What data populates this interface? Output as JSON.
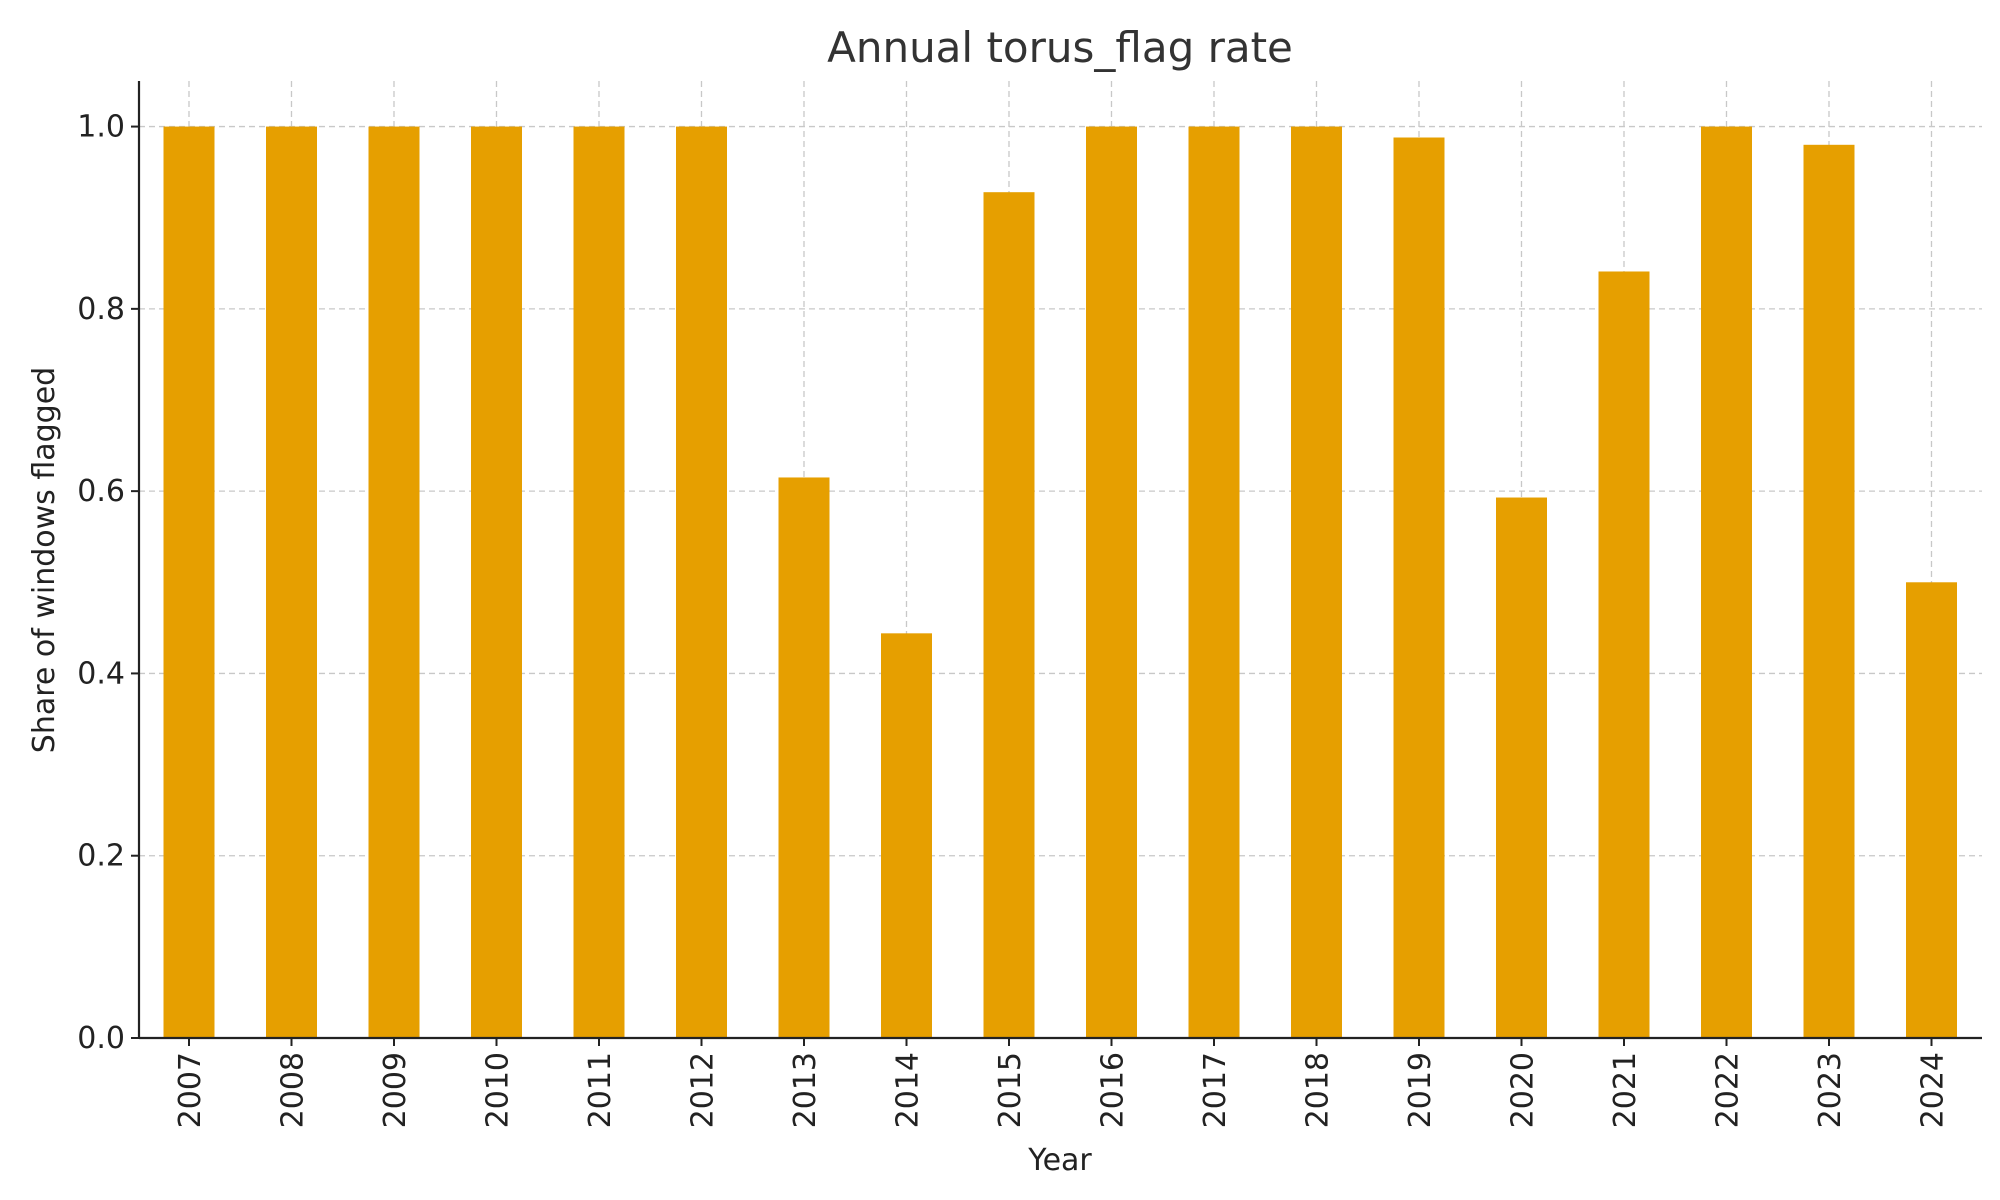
{
  "chart_data": {
    "type": "bar",
    "title": "Annual torus_flag rate",
    "xlabel": "Year",
    "ylabel": "Share of windows flagged",
    "categories": [
      "2007",
      "2008",
      "2009",
      "2010",
      "2011",
      "2012",
      "2013",
      "2014",
      "2015",
      "2016",
      "2017",
      "2018",
      "2019",
      "2020",
      "2021",
      "2022",
      "2023",
      "2024"
    ],
    "values": [
      1.0,
      1.0,
      1.0,
      1.0,
      1.0,
      1.0,
      0.615,
      0.444,
      0.928,
      1.0,
      1.0,
      1.0,
      0.988,
      0.593,
      0.841,
      1.0,
      0.98,
      0.5
    ],
    "ylim": [
      0,
      1.05
    ],
    "yticks": [
      "0.0",
      "0.2",
      "0.4",
      "0.6",
      "0.8",
      "1.0"
    ],
    "grid": true,
    "bar_color": "#E69F00"
  }
}
